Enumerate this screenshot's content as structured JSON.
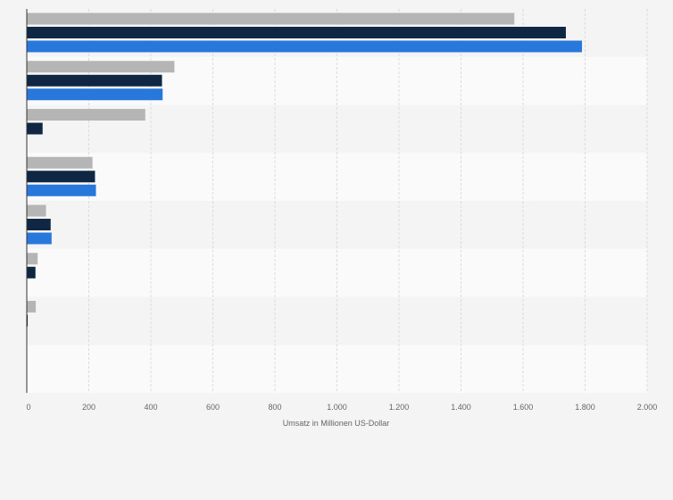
{
  "chart_data": {
    "type": "bar",
    "orientation": "horizontal",
    "categories": [
      "",
      "",
      "",
      "",
      "",
      "",
      "",
      ""
    ],
    "series": [
      {
        "color": "#b5b5b5",
        "values": [
          1572,
          476,
          382,
          212,
          62,
          35,
          29,
          0
        ]
      },
      {
        "color": "#0f2742",
        "values": [
          1738,
          436,
          51,
          220,
          77,
          28,
          3,
          0
        ]
      },
      {
        "color": "#2878dc",
        "values": [
          1790,
          438,
          0,
          223,
          80,
          0,
          0,
          0
        ]
      }
    ],
    "xlabel": "Umsatz in Millionen US-Dollar",
    "xlim": [
      0,
      2000
    ],
    "xticks": [
      0,
      200,
      400,
      600,
      800,
      1000,
      1200,
      1400,
      1600,
      1800,
      2000
    ],
    "xtick_labels": [
      "0",
      "200",
      "400",
      "600",
      "800",
      "1.000",
      "1.200",
      "1.400",
      "1.600",
      "1.800",
      "2.000"
    ],
    "grid": true,
    "legend": "none"
  }
}
